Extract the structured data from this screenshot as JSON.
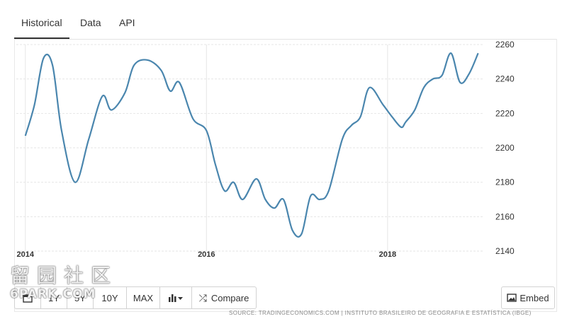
{
  "tabs": [
    {
      "label": "Historical",
      "active": true
    },
    {
      "label": "Data",
      "active": false
    },
    {
      "label": "API",
      "active": false
    }
  ],
  "source": "SOURCE: TRADINGECONOMICS.COM | INSTITUTO BRASILEIRO DE GEOGRAFIA E ESTATÍSTICA (IBGE)",
  "buttons": {
    "b1y": "1Y",
    "b5y": "5Y",
    "b10y": "10Y",
    "max": "MAX",
    "compare": "Compare",
    "embed": "Embed"
  },
  "watermark": {
    "line1": "留园社区",
    "line2": "6PARK.COM"
  },
  "colors": {
    "line": "#4a86ae",
    "grid": "#e6e6e6"
  },
  "chart_data": {
    "type": "line",
    "x_ticks": [
      "2014",
      "2016",
      "2018"
    ],
    "x_tick_values": [
      2014,
      2016,
      2018
    ],
    "y_ticks": [
      "2140",
      "2160",
      "2180",
      "2200",
      "2220",
      "2240",
      "2260"
    ],
    "y_tick_values": [
      2140,
      2160,
      2180,
      2200,
      2220,
      2240,
      2260
    ],
    "ylim": [
      2140,
      2260
    ],
    "grid": true,
    "series": [
      {
        "x": [
          2014.0,
          2014.1,
          2014.2,
          2014.3,
          2014.4,
          2014.55,
          2014.7,
          2014.85,
          2014.95,
          2015.1,
          2015.2,
          2015.35,
          2015.5,
          2015.6,
          2015.7,
          2015.85,
          2016.0,
          2016.1,
          2016.2,
          2016.3,
          2016.4,
          2016.55,
          2016.65,
          2016.75,
          2016.85,
          2016.95,
          2017.05,
          2017.15,
          2017.25,
          2017.35,
          2017.5,
          2017.6,
          2017.7,
          2017.8,
          2017.95,
          2018.05,
          2018.15,
          2018.2,
          2018.3,
          2018.4,
          2018.5,
          2018.6,
          2018.7,
          2018.8,
          2018.9,
          2019.0
        ],
        "y": [
          2207,
          2225,
          2252,
          2248,
          2210,
          2180,
          2205,
          2230,
          2222,
          2232,
          2248,
          2251,
          2245,
          2233,
          2238,
          2217,
          2210,
          2190,
          2175,
          2180,
          2170,
          2182,
          2170,
          2165,
          2170,
          2152,
          2150,
          2172,
          2170,
          2175,
          2205,
          2213,
          2218,
          2235,
          2225,
          2218,
          2212,
          2215,
          2222,
          2235,
          2240,
          2242,
          2255,
          2238,
          2243,
          2255
        ]
      }
    ]
  }
}
